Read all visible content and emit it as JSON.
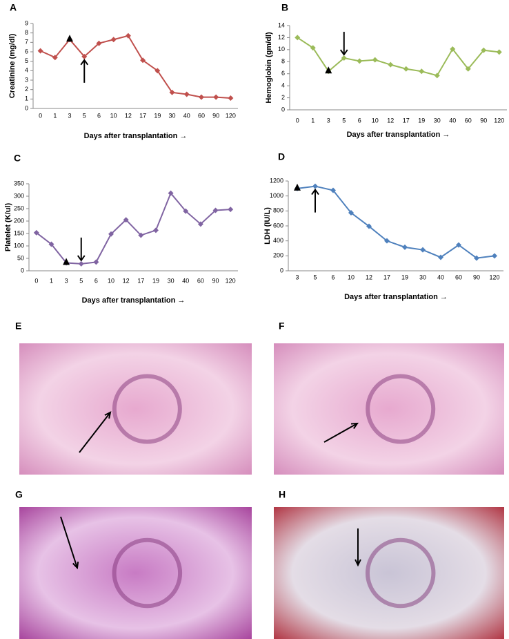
{
  "chart_data": [
    {
      "type": "line",
      "panel": "A",
      "y_label": "Creatinine (mg/dl)",
      "x_label": "Days after transplantation →",
      "categories": [
        "0",
        "1",
        "3",
        "5",
        "6",
        "10",
        "12",
        "17",
        "19",
        "30",
        "40",
        "60",
        "90",
        "120"
      ],
      "values": [
        6.1,
        5.4,
        7.3,
        5.5,
        6.9,
        7.3,
        7.7,
        5.1,
        4.0,
        1.7,
        1.5,
        1.2,
        1.2,
        1.1
      ],
      "color": "#c0504d",
      "ylim": [
        0,
        9
      ],
      "yticks": [
        0,
        1,
        2,
        3,
        4,
        5,
        6,
        7,
        8,
        9
      ]
    },
    {
      "type": "line",
      "panel": "B",
      "y_label": "Hemoglobin (gm/dl)",
      "x_label": "Days after transplantation →",
      "categories": [
        "0",
        "1",
        "3",
        "5",
        "6",
        "10",
        "12",
        "17",
        "19",
        "30",
        "40",
        "60",
        "90",
        "120"
      ],
      "values": [
        12.0,
        10.3,
        6.4,
        8.6,
        8.1,
        8.3,
        7.5,
        6.8,
        6.4,
        5.7,
        10.1,
        6.8,
        9.9,
        9.6
      ],
      "color": "#9bbb59",
      "ylim": [
        0,
        14
      ],
      "yticks": [
        0,
        2,
        4,
        6,
        8,
        10,
        12,
        14
      ]
    },
    {
      "type": "line",
      "panel": "C",
      "y_label": "Platelet (K/ul)",
      "x_label": "Days after transplantation →",
      "categories": [
        "0",
        "1",
        "3",
        "5",
        "6",
        "10",
        "12",
        "17",
        "19",
        "30",
        "40",
        "60",
        "90",
        "120"
      ],
      "values": [
        153,
        107,
        32,
        28,
        35,
        148,
        205,
        143,
        163,
        312,
        240,
        188,
        243,
        247
      ],
      "color": "#8064a2",
      "ylim": [
        0,
        350
      ],
      "yticks": [
        0,
        50,
        100,
        150,
        200,
        250,
        300,
        350
      ]
    },
    {
      "type": "line",
      "panel": "D",
      "y_label": "LDH (IU/L)",
      "x_label": "Days after transplantation →",
      "categories": [
        "3",
        "5",
        "6",
        "10",
        "12",
        "17",
        "19",
        "30",
        "40",
        "60",
        "90",
        "120"
      ],
      "values": [
        1100,
        1130,
        1075,
        775,
        595,
        400,
        315,
        280,
        180,
        345,
        170,
        200
      ],
      "color": "#4f81bd",
      "ylim": [
        0,
        1200
      ],
      "yticks": [
        0,
        200,
        400,
        600,
        800,
        1000,
        1200
      ]
    }
  ],
  "images": [
    {
      "panel": "E"
    },
    {
      "panel": "F"
    },
    {
      "panel": "G"
    },
    {
      "panel": "H"
    }
  ]
}
